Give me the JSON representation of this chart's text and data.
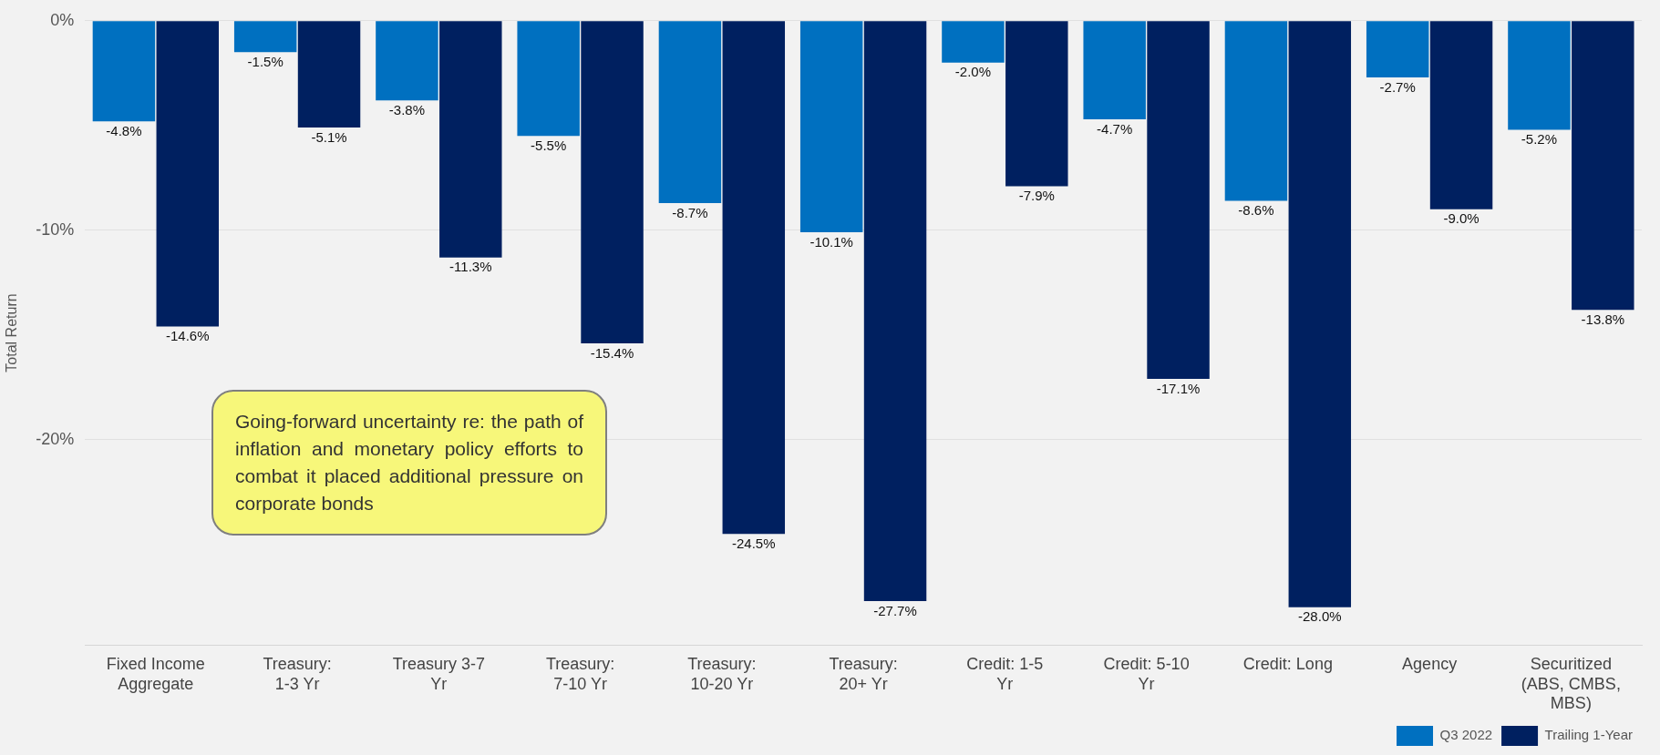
{
  "chart_data": {
    "type": "bar",
    "ylabel": "Total Return",
    "categories": [
      "Fixed Income Aggregate",
      "Treasury: 1-3 Yr",
      "Treasury 3-7 Yr",
      "Treasury: 7-10 Yr",
      "Treasury: 10-20 Yr",
      "Treasury: 20+ Yr",
      "Credit: 1-5 Yr",
      "Credit: 5-10 Yr",
      "Credit: Long",
      "Agency",
      "Securitized (ABS, CMBS, MBS)"
    ],
    "series": [
      {
        "name": "Q3 2022",
        "color": "#0070c0",
        "values": [
          -4.8,
          -1.5,
          -3.8,
          -5.5,
          -8.7,
          -10.1,
          -2.0,
          -4.7,
          -8.6,
          -2.7,
          -5.2
        ],
        "value_labels": [
          "-4.8%",
          "-1.5%",
          "-3.8%",
          "-5.5%",
          "-8.7%",
          "-10.1%",
          "-2.0%",
          "-4.7%",
          "-8.6%",
          "-2.7%",
          "-5.2%"
        ]
      },
      {
        "name": "Trailing 1-Year",
        "color": "#002060",
        "values": [
          -14.6,
          -5.1,
          -11.3,
          -15.4,
          -24.5,
          -27.7,
          -7.9,
          -17.1,
          -28.0,
          -9.0,
          -13.8
        ],
        "value_labels": [
          "-14.6%",
          "-5.1%",
          "-11.3%",
          "-15.4%",
          "-24.5%",
          "-27.7%",
          "-7.9%",
          "-17.1%",
          "-28.0%",
          "-9.0%",
          "-13.8%"
        ]
      }
    ],
    "ylim": [
      -29.8,
      0
    ],
    "yticks": [
      {
        "value": 0,
        "label": "0%"
      },
      {
        "value": -10,
        "label": "-10%"
      },
      {
        "value": -20,
        "label": "-20%"
      }
    ],
    "grid": "y",
    "legend": "bottom right",
    "annotations": [
      "Going-forward uncertainty re: the path of inflation and monetary policy efforts to combat it placed additional pressure on corporate bonds"
    ]
  }
}
